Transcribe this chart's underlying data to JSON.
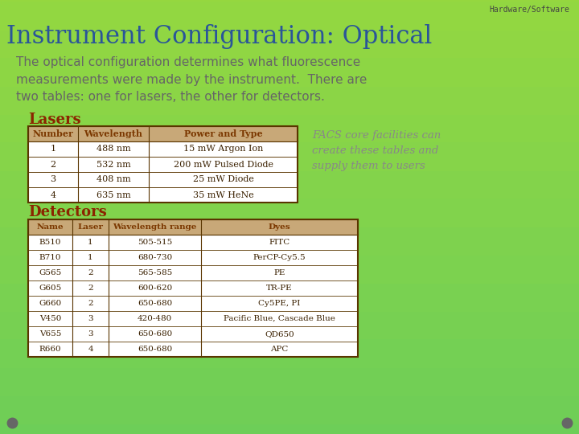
{
  "title": "Instrument Configuration: Optical",
  "subtitle": "Hardware/Software",
  "body_text": "The optical configuration determines what fluorescence\nmeasurements were made by the instrument.  There are\ntwo tables: one for lasers, the other for detectors.",
  "facs_note": "FACS core facilities can\ncreate these tables and\nsupply them to users",
  "lasers_title": "Lasers",
  "lasers_headers": [
    "Number",
    "Wavelength",
    "Power and Type"
  ],
  "lasers_rows": [
    [
      "1",
      "488 nm",
      "15 mW Argon Ion"
    ],
    [
      "2",
      "532 nm",
      "200 mW Pulsed Diode"
    ],
    [
      "3",
      "408 nm",
      "25 mW Diode"
    ],
    [
      "4",
      "635 nm",
      "35 mW HeNe"
    ]
  ],
  "detectors_title": "Detectors",
  "detectors_headers": [
    "Name",
    "Laser",
    "Wavelength range",
    "Dyes"
  ],
  "detectors_rows": [
    [
      "B510",
      "1",
      "505-515",
      "FITC"
    ],
    [
      "B710",
      "1",
      "680-730",
      "PerCP-Cy5.5"
    ],
    [
      "G565",
      "2",
      "565-585",
      "PE"
    ],
    [
      "G605",
      "2",
      "600-620",
      "TR-PE"
    ],
    [
      "G660",
      "2",
      "650-680",
      "Cy5PE, PI"
    ],
    [
      "V450",
      "3",
      "420-480",
      "Pacific Blue, Cascade Blue"
    ],
    [
      "V655",
      "3",
      "650-680",
      "QD650"
    ],
    [
      "R660",
      "4",
      "650-680",
      "APC"
    ]
  ],
  "title_color": "#2a5599",
  "subtitle_color": "#444444",
  "body_text_color": "#666666",
  "table_header_color": "#7B3800",
  "table_data_color": "#3a2000",
  "table_title_color": "#8B2500",
  "facs_note_color": "#888888",
  "table_border_color": "#5a3500",
  "table_header_bg": "#c8a878",
  "dot_color": "#666666",
  "bg_light": 0.84,
  "bg_dark": 0.78
}
